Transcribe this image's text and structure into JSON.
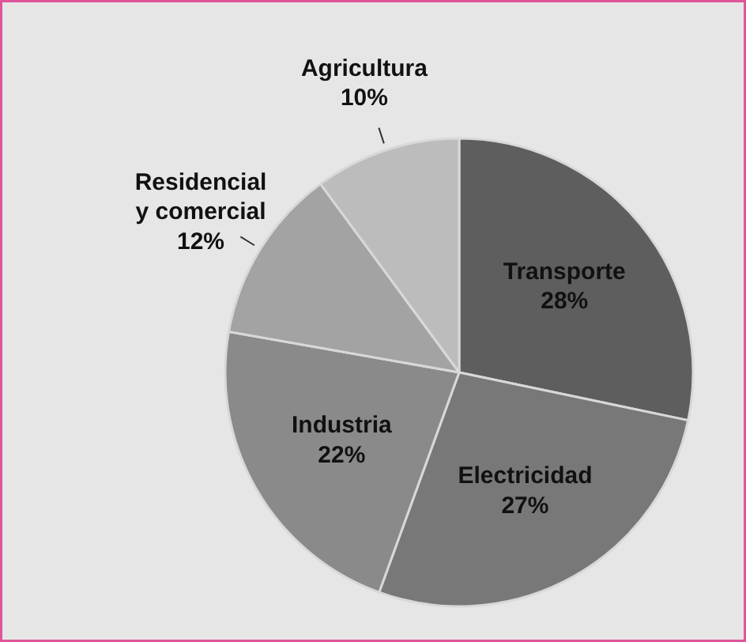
{
  "chart_data": {
    "type": "pie",
    "categories": [
      "Transporte",
      "Electricidad",
      "Industria",
      "Residencial y comercial",
      "Agricultura"
    ],
    "values": [
      28,
      27,
      22,
      12,
      10
    ],
    "colors": [
      "#5e5e5e",
      "#787878",
      "#8a8a8a",
      "#a3a3a3",
      "#bcbcbc"
    ],
    "value_labels": [
      "28%",
      "27%",
      "22%",
      "12%",
      "10%"
    ]
  }
}
